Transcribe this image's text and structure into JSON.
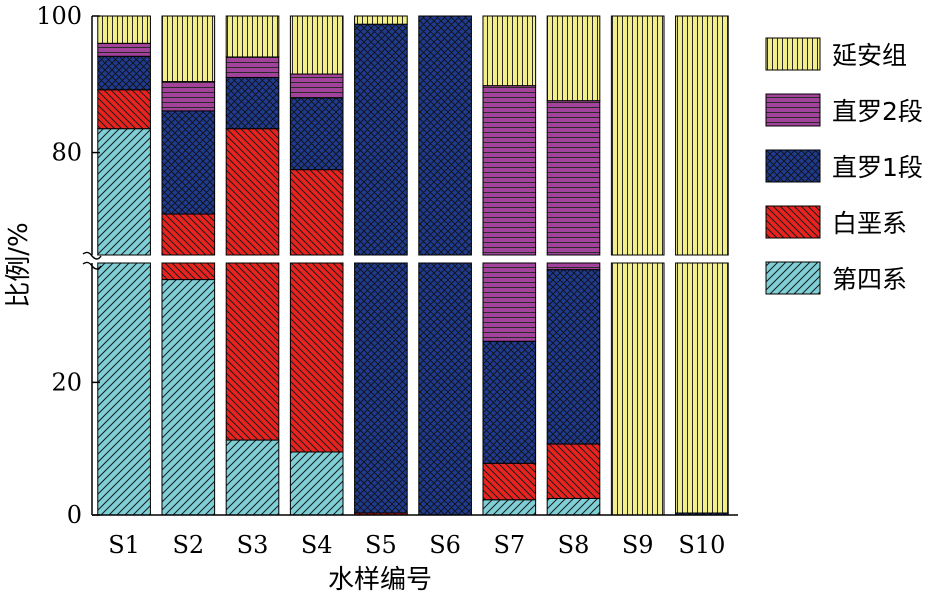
{
  "chart_data": {
    "type": "bar",
    "stacked": true,
    "broken_y_axis": true,
    "xlabel": "水样编号",
    "ylabel": "比例/%",
    "categories": [
      "S1",
      "S2",
      "S3",
      "S4",
      "S5",
      "S6",
      "S7",
      "S8",
      "S9",
      "S10"
    ],
    "y_ticks": [
      "0",
      "20",
      "80",
      "100"
    ],
    "y_lower_range": [
      0,
      38
    ],
    "y_upper_range": [
      65,
      100
    ],
    "legend_position": "right",
    "series": [
      {
        "name": "第四系",
        "color": "#7fcfd6",
        "pattern": "diag-rising",
        "values": [
          83.5,
          35.5,
          11.3,
          9.5,
          0,
          0,
          2.3,
          2.5,
          0,
          0
        ]
      },
      {
        "name": "白垩系",
        "color": "#e8231f",
        "pattern": "diag-falling",
        "values": [
          5.7,
          35.5,
          72.2,
          68.0,
          0.3,
          0,
          5.5,
          8.2,
          0,
          0
        ]
      },
      {
        "name": "直罗1段",
        "color": "#1f3a8f",
        "pattern": "crosshatch",
        "values": [
          4.9,
          15.1,
          7.5,
          10.5,
          98.5,
          100,
          18.4,
          26.3,
          0,
          0.3
        ]
      },
      {
        "name": "直罗2段",
        "color": "#a3429a",
        "pattern": "horizontal",
        "values": [
          1.9,
          4.3,
          3.0,
          3.5,
          0,
          0,
          63.6,
          50.6,
          0,
          0
        ]
      },
      {
        "name": "延安组",
        "color": "#f2ee8a",
        "pattern": "vertical",
        "values": [
          4.0,
          9.6,
          6.0,
          8.5,
          1.2,
          0,
          10.2,
          12.4,
          100,
          99.7
        ]
      }
    ]
  }
}
